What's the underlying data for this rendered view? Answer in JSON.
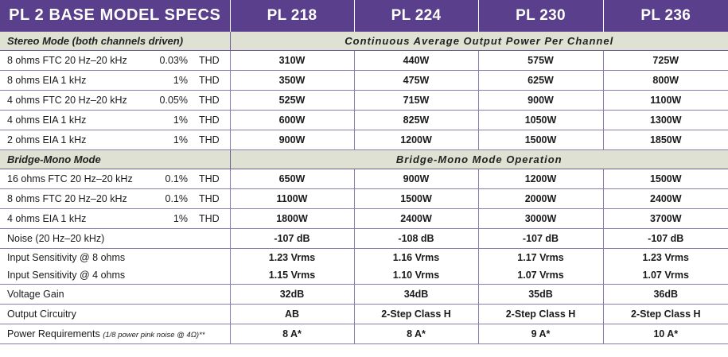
{
  "header": {
    "title": "PL 2 BASE MODEL SPECS",
    "models": [
      "PL 218",
      "PL 224",
      "PL 230",
      "PL 236"
    ]
  },
  "stereo": {
    "label": "Stereo Mode (both channels driven)",
    "title": "Continuous Average Output Power Per Channel",
    "rows": [
      {
        "cond": "8 ohms  FTC  20 Hz–20 kHz",
        "pct": "0.03%",
        "thd": "THD",
        "values": [
          "310W",
          "440W",
          "575W",
          "725W"
        ]
      },
      {
        "cond": "8 ohms  EIA  1 kHz",
        "pct": "1%",
        "thd": "THD",
        "values": [
          "350W",
          "475W",
          "625W",
          "800W"
        ]
      },
      {
        "cond": "4 ohms  FTC  20 Hz–20 kHz",
        "pct": "0.05%",
        "thd": "THD",
        "values": [
          "525W",
          "715W",
          "900W",
          "1100W"
        ]
      },
      {
        "cond": "4 ohms  EIA  1 kHz",
        "pct": "1%",
        "thd": "THD",
        "values": [
          "600W",
          "825W",
          "1050W",
          "1300W"
        ]
      },
      {
        "cond": "2 ohms  EIA  1 kHz",
        "pct": "1%",
        "thd": "THD",
        "values": [
          "900W",
          "1200W",
          "1500W",
          "1850W"
        ]
      }
    ]
  },
  "bridge": {
    "label": "Bridge-Mono Mode",
    "title": "Bridge-Mono Mode Operation",
    "rows": [
      {
        "cond": "16 ohms  FTC  20 Hz–20 kHz",
        "pct": "0.1%",
        "thd": "THD",
        "values": [
          "650W",
          "900W",
          "1200W",
          "1500W"
        ]
      },
      {
        "cond": "8 ohms  FTC  20 Hz–20 kHz",
        "pct": "0.1%",
        "thd": "THD",
        "values": [
          "1100W",
          "1500W",
          "2000W",
          "2400W"
        ]
      },
      {
        "cond": "4 ohms  EIA  1 kHz",
        "pct": "1%",
        "thd": "THD",
        "values": [
          "1800W",
          "2400W",
          "3000W",
          "3700W"
        ]
      }
    ]
  },
  "other": {
    "noise": {
      "label": "Noise (20 Hz–20 kHz)",
      "values": [
        "-107 dB",
        "-108 dB",
        "-107 dB",
        "-107 dB"
      ]
    },
    "sens8": {
      "label": "Input Sensitivity @ 8 ohms",
      "values": [
        "1.23 Vrms",
        "1.16 Vrms",
        "1.17 Vrms",
        "1.23 Vrms"
      ]
    },
    "sens4": {
      "label": "Input Sensitivity @ 4 ohms",
      "values": [
        "1.15 Vrms",
        "1.10 Vrms",
        "1.07 Vrms",
        "1.07 Vrms"
      ]
    },
    "gain": {
      "label": "Voltage Gain",
      "values": [
        "32dB",
        "34dB",
        "35dB",
        "36dB"
      ]
    },
    "circuit": {
      "label": "Output Circuitry",
      "values": [
        "AB",
        "2-Step Class H",
        "2-Step Class H",
        "2-Step Class H"
      ]
    },
    "power": {
      "label": "Power Requirements",
      "note": "(1/8 power pink noise @ 4Ω)**",
      "values": [
        "8 A*",
        "8 A*",
        "9 A*",
        "10 A*"
      ]
    }
  },
  "colors": {
    "header_bg": "#5a3f8c",
    "section_bg": "#dfe2d2",
    "rule": "#8a7bb0"
  }
}
